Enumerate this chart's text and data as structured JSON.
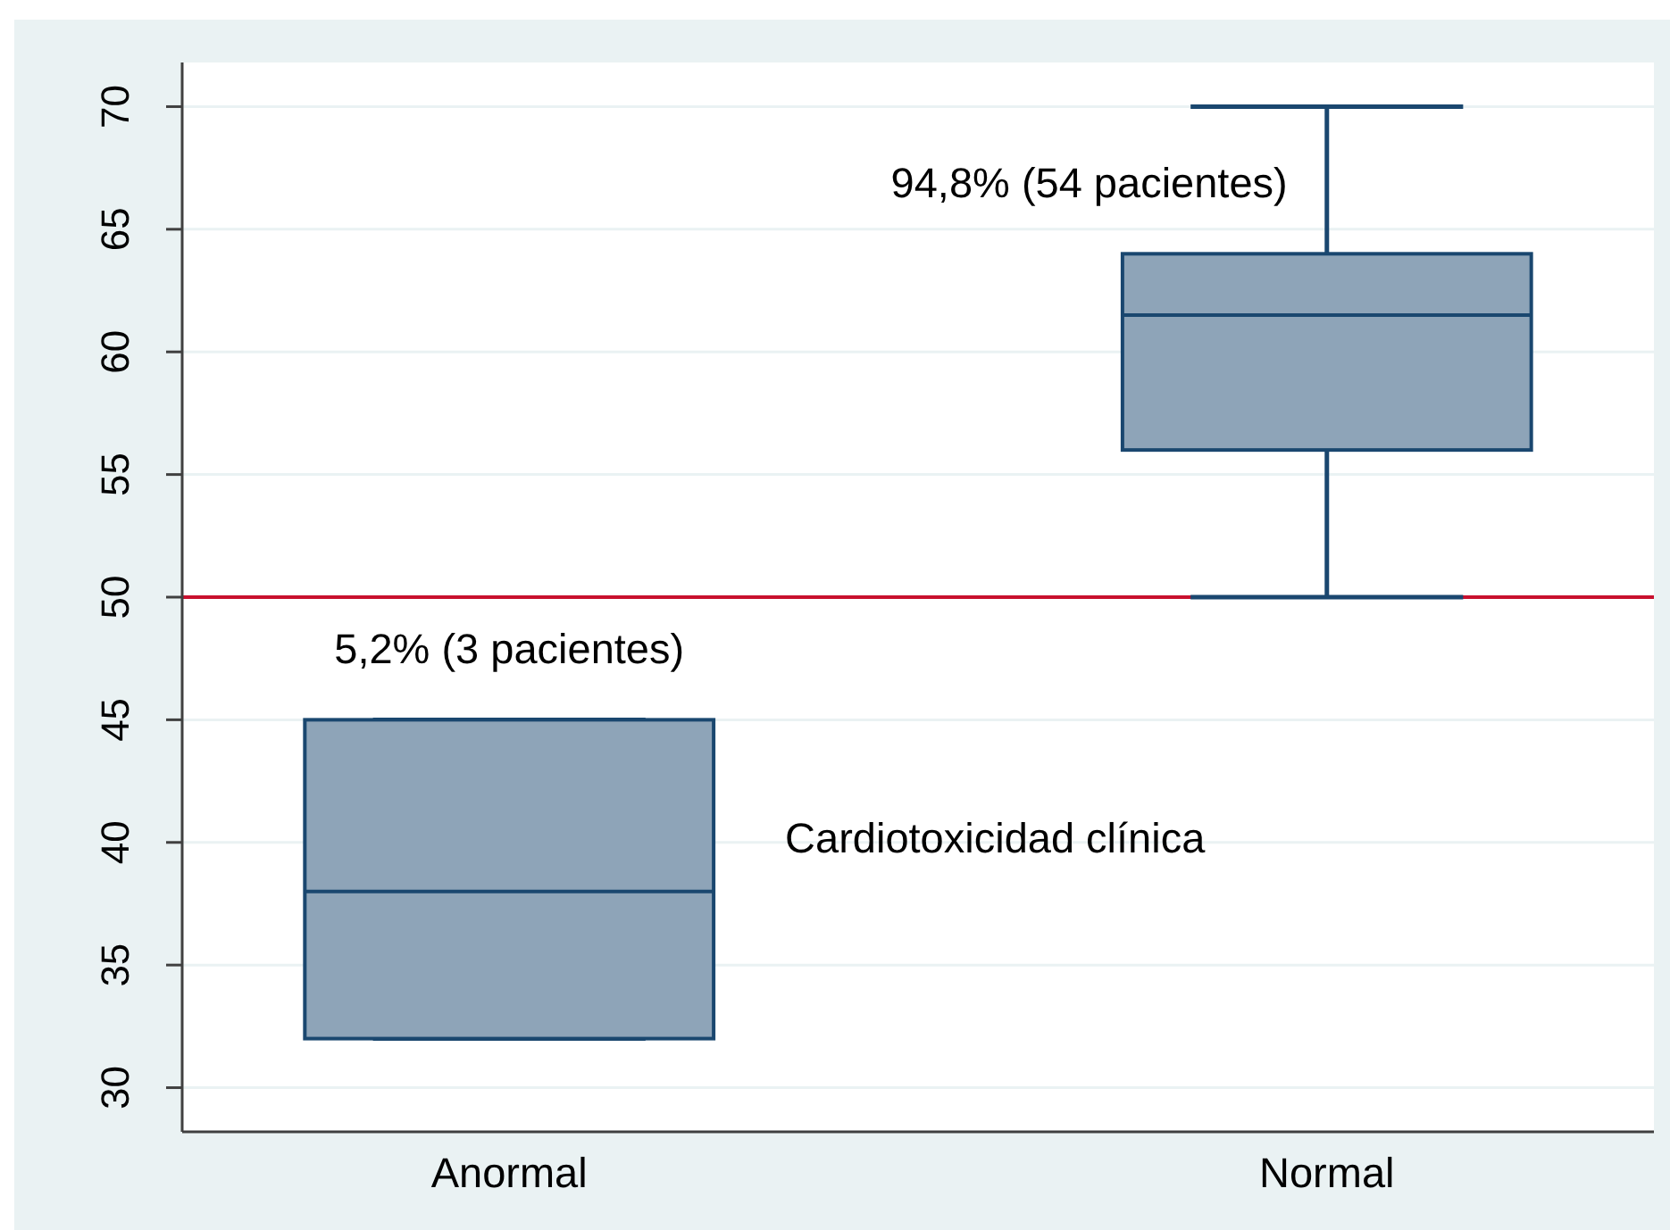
{
  "chart_data": {
    "type": "box",
    "categories": [
      "Anormal",
      "Normal"
    ],
    "series": [
      {
        "color": "#8ea4b8",
        "boxes": [
          {
            "low": 32,
            "q1": 32,
            "median": 38,
            "q3": 45,
            "high": 45
          },
          {
            "low": 50,
            "q1": 56,
            "median": 61.5,
            "q3": 64,
            "high": 70
          }
        ]
      }
    ],
    "ylim": [
      28.2,
      71.8
    ],
    "yticks": [
      30,
      35,
      40,
      45,
      50,
      55,
      60,
      65,
      70
    ],
    "grid": "y",
    "ref_lines": [
      {
        "axis": "y",
        "value": 50,
        "color": "#c8102e"
      }
    ],
    "annotations": [
      "5,2% (3 pacientes)",
      "94,8% (54 pacientes)",
      "Cardiotoxicidad clínica"
    ]
  }
}
